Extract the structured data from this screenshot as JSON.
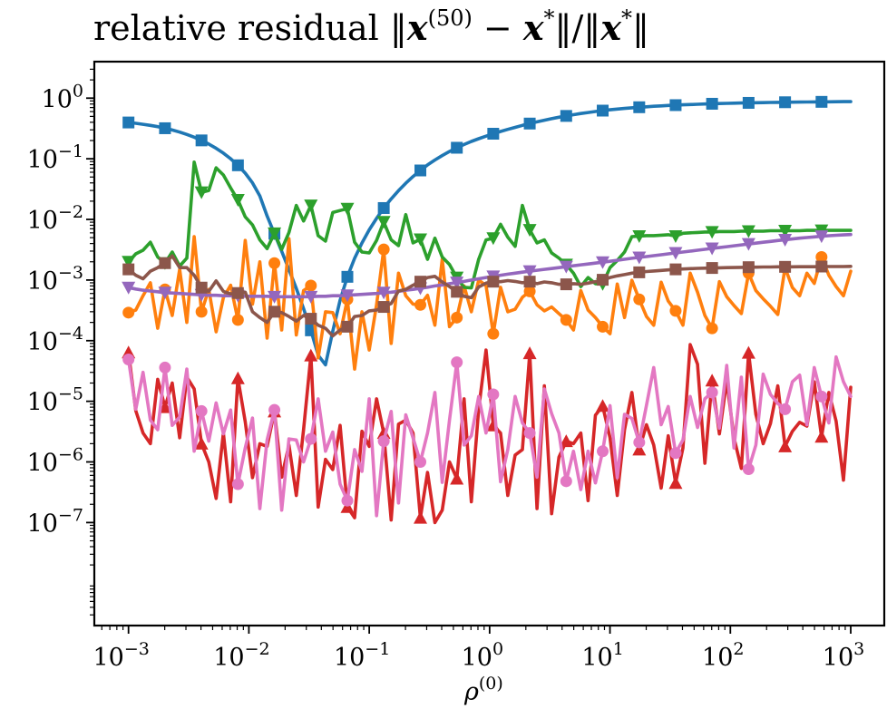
{
  "chart_data": {
    "type": "line",
    "title": "relative residual ‖x(50) − x*‖/‖x*‖",
    "title_parts": {
      "prefix": "relative residual ‖",
      "x1": "x",
      "sup": "(50)",
      "minus": " − ",
      "x2": "x",
      "star": "*",
      "mid": "‖/‖",
      "x3": "x",
      "star2": "*",
      "end": "‖"
    },
    "xlabel": "ρ",
    "xlabel_sup": "(0)",
    "ylabel": "",
    "xscale": "log",
    "yscale": "log",
    "xlim": [
      0.00052,
      1900
    ],
    "ylim": [
      2e-09,
      4.0
    ],
    "x_ticks": [
      {
        "value": 0.001,
        "base": "10",
        "exp": "−3"
      },
      {
        "value": 0.01,
        "base": "10",
        "exp": "−2"
      },
      {
        "value": 0.1,
        "base": "10",
        "exp": "−1"
      },
      {
        "value": 1,
        "base": "10",
        "exp": "0"
      },
      {
        "value": 10,
        "base": "10",
        "exp": "1"
      },
      {
        "value": 100,
        "base": "10",
        "exp": "2"
      },
      {
        "value": 1000,
        "base": "10",
        "exp": "3"
      }
    ],
    "y_ticks": [
      {
        "value": 1,
        "base": "10",
        "exp": "0"
      },
      {
        "value": 0.1,
        "base": "10",
        "exp": "−1"
      },
      {
        "value": 0.01,
        "base": "10",
        "exp": "−2"
      },
      {
        "value": 0.001,
        "base": "10",
        "exp": "−3"
      },
      {
        "value": 0.0001,
        "base": "10",
        "exp": "−4"
      },
      {
        "value": 1e-05,
        "base": "10",
        "exp": "−5"
      },
      {
        "value": 1e-06,
        "base": "10",
        "exp": "−6"
      },
      {
        "value": 1e-07,
        "base": "10",
        "exp": "−7"
      }
    ],
    "x": [
      0.001,
      0.00115,
      0.00132,
      0.00152,
      0.00175,
      0.00201,
      0.00231,
      0.00266,
      0.00305,
      0.00351,
      0.00404,
      0.00464,
      0.00534,
      0.00614,
      0.00705,
      0.00811,
      0.00933,
      0.01072,
      0.01233,
      0.01417,
      0.0163,
      0.01874,
      0.02154,
      0.02477,
      0.02848,
      0.03275,
      0.03765,
      0.04329,
      0.04977,
      0.05722,
      0.06579,
      0.07565,
      0.08697,
      0.1,
      0.115,
      0.132,
      0.152,
      0.175,
      0.201,
      0.231,
      0.266,
      0.305,
      0.351,
      0.404,
      0.464,
      0.534,
      0.614,
      0.705,
      0.811,
      0.933,
      1.072,
      1.233,
      1.417,
      1.63,
      1.874,
      2.154,
      2.477,
      2.848,
      3.275,
      3.765,
      4.329,
      4.977,
      5.722,
      6.579,
      7.565,
      8.697,
      10.0,
      11.5,
      13.2,
      15.2,
      17.5,
      20.1,
      23.1,
      26.6,
      30.5,
      35.1,
      40.4,
      46.4,
      53.4,
      61.4,
      70.5,
      81.1,
      93.3,
      107.2,
      123.3,
      141.7,
      163.0,
      187.4,
      215.4,
      247.7,
      284.8,
      327.5,
      376.5,
      432.9,
      497.7,
      572.2,
      657.9,
      756.5,
      869.7,
      1000.0
    ],
    "series": [
      {
        "name": "blue-squares",
        "color": "#1f77b4",
        "marker": "square",
        "values": [
          0.397,
          0.385,
          0.371,
          0.356,
          0.339,
          0.319,
          0.298,
          0.276,
          0.252,
          0.227,
          0.201,
          0.175,
          0.149,
          0.124,
          0.1,
          0.0781,
          0.058,
          0.0401,
          0.0244,
          0.0114,
          0.0058,
          0.00298,
          0.00149,
          0.000725,
          0.000338,
          0.000148,
          5.75e-05,
          3.99e-05,
          0.000143,
          0.000466,
          0.00113,
          0.00228,
          0.00408,
          0.00673,
          0.0104,
          0.0154,
          0.0218,
          0.0298,
          0.0395,
          0.051,
          0.0642,
          0.0791,
          0.0955,
          0.113,
          0.132,
          0.152,
          0.172,
          0.193,
          0.214,
          0.236,
          0.259,
          0.282,
          0.306,
          0.33,
          0.355,
          0.381,
          0.406,
          0.433,
          0.458,
          0.484,
          0.509,
          0.534,
          0.558,
          0.58,
          0.602,
          0.623,
          0.642,
          0.66,
          0.677,
          0.693,
          0.708,
          0.721,
          0.734,
          0.746,
          0.757,
          0.767,
          0.777,
          0.785,
          0.794,
          0.801,
          0.808,
          0.815,
          0.821,
          0.826,
          0.832,
          0.836,
          0.841,
          0.845,
          0.849,
          0.852,
          0.856,
          0.859,
          0.862,
          0.864,
          0.867,
          0.869,
          0.871,
          0.873,
          0.875,
          0.877
        ]
      },
      {
        "name": "orange-circles",
        "color": "#ff7f0e",
        "marker": "circle",
        "values": [
          0.00029,
          0.00032,
          0.00055,
          0.0009,
          0.00016,
          0.0007,
          0.00026,
          0.0015,
          0.0002,
          0.0052,
          0.0003,
          0.0007,
          0.00014,
          0.00051,
          0.00082,
          0.00022,
          0.0045,
          0.0004,
          0.002,
          0.00011,
          0.0019,
          0.00015,
          0.0048,
          0.000124,
          0.00067,
          0.00081,
          5.2e-05,
          0.0003,
          0.00029,
          0.00013,
          0.00048,
          3.4e-05,
          0.0003,
          7e-05,
          0.00039,
          0.0032,
          9e-05,
          0.0013,
          0.00055,
          0.0004,
          0.00039,
          0.00056,
          0.00018,
          0.0022,
          0.00017,
          0.00024,
          0.0008,
          0.0003,
          0.001,
          0.00081,
          0.00013,
          0.00076,
          0.0003,
          0.00033,
          0.00052,
          0.00065,
          0.00039,
          0.00031,
          0.00036,
          0.00028,
          0.00022,
          0.00015,
          0.00067,
          0.00032,
          0.00024,
          0.00017,
          0.00013,
          0.00086,
          0.00024,
          0.00099,
          0.00048,
          0.00025,
          0.00018,
          0.00092,
          0.00045,
          0.00031,
          0.00018,
          0.0013,
          0.00063,
          0.00026,
          0.00016,
          0.00094,
          0.00053,
          0.00038,
          0.00028,
          0.0013,
          0.00067,
          0.00049,
          0.00037,
          0.00027,
          0.0016,
          0.00075,
          0.00055,
          0.0013,
          0.00088,
          0.0024,
          0.0012,
          0.00078,
          0.00055,
          0.0014
        ]
      },
      {
        "name": "green-down-triangles",
        "color": "#2ca02c",
        "marker": "triangle-down",
        "values": [
          0.002,
          0.0027,
          0.0031,
          0.0042,
          0.0024,
          0.0019,
          0.0029,
          0.0017,
          0.0023,
          0.088,
          0.028,
          0.03,
          0.071,
          0.054,
          0.033,
          0.021,
          0.011,
          0.0081,
          0.0046,
          0.0033,
          0.0059,
          0.0032,
          0.0061,
          0.017,
          0.0094,
          0.017,
          0.0054,
          0.0044,
          0.013,
          0.014,
          0.015,
          0.0042,
          0.0029,
          0.0028,
          0.0045,
          0.0091,
          0.0046,
          0.0037,
          0.012,
          0.0041,
          0.0047,
          0.0022,
          0.0049,
          0.0024,
          0.0018,
          0.0011,
          0.00076,
          0.00074,
          0.0022,
          0.0046,
          0.0049,
          0.0083,
          0.0051,
          0.0036,
          0.017,
          0.0067,
          0.0041,
          0.0046,
          0.0028,
          0.0023,
          0.0018,
          0.0013,
          0.00078,
          0.0011,
          0.00087,
          0.00086,
          0.0016,
          0.0021,
          0.0029,
          0.0052,
          0.0053,
          0.0054,
          0.0054,
          0.0055,
          0.0056,
          0.0053,
          0.0059,
          0.006,
          0.0061,
          0.0062,
          0.0062,
          0.0063,
          0.0063,
          0.0063,
          0.0064,
          0.0064,
          0.0064,
          0.0064,
          0.0065,
          0.0065,
          0.0065,
          0.0065,
          0.0065,
          0.0066,
          0.0066,
          0.0066,
          0.0066,
          0.0066,
          0.0066,
          0.0066
        ]
      },
      {
        "name": "red-up-triangles",
        "color": "#d62728",
        "marker": "triangle-up",
        "values": [
          6.4e-05,
          7e-06,
          3e-06,
          2e-06,
          2.3e-05,
          8e-06,
          2e-05,
          2.5e-06,
          2.5e-05,
          1.6e-05,
          2e-06,
          1e-06,
          2.5e-07,
          3e-06,
          2.2e-07,
          2.4e-05,
          4.6e-06,
          5.5e-07,
          2e-06,
          1.8e-06,
          6.8e-06,
          5.6e-07,
          1.9e-06,
          2.8e-07,
          3.4e-06,
          5.7e-05,
          1.8e-07,
          1.1e-06,
          7.5e-07,
          4e-06,
          1.8e-07,
          1.2e-07,
          3.2e-06,
          1.8e-06,
          1.1e-05,
          3e-06,
          1.1e-07,
          4.2e-06,
          4.9e-06,
          3e-06,
          1.2e-07,
          6.7e-07,
          1e-07,
          1.6e-07,
          1e-06,
          5.3e-07,
          1.1e-05,
          2.2e-07,
          7.5e-06,
          7e-05,
          4e-06,
          3e-06,
          2.8e-07,
          1.3e-06,
          1.6e-06,
          6.2e-05,
          1.7e-07,
          1.8e-05,
          1.4e-07,
          1.2e-06,
          2.2e-06,
          2e-06,
          3e-06,
          2.3e-07,
          5.9e-06,
          8.4e-06,
          2.5e-06,
          2.8e-07,
          3.4e-06,
          1.4e-05,
          1.6e-06,
          4.1e-06,
          1.9e-06,
          3.7e-07,
          2.7e-06,
          4.5e-07,
          1.7e-06,
          8.6e-05,
          4.1e-05,
          9.5e-07,
          2.2e-05,
          2.9e-06,
          2.2e-05,
          2.5e-06,
          7.8e-07,
          6.3e-05,
          6.1e-06,
          2e-06,
          4.3e-06,
          1.8e-05,
          1.8e-06,
          3.2e-06,
          4.5e-06,
          3.9e-06,
          2.1e-05,
          2.6e-06,
          1.4e-05,
          4.7e-06,
          5e-07,
          1.7e-05
        ]
      },
      {
        "name": "purple-down-triangles",
        "color": "#9467bd",
        "marker": "triangle-down",
        "values": [
          0.00075,
          0.00071,
          0.00068,
          0.00066,
          0.00064,
          0.00062,
          0.00061,
          0.0006,
          0.00059,
          0.00058,
          0.00057,
          0.00056,
          0.00056,
          0.00055,
          0.00055,
          0.00055,
          0.00054,
          0.00054,
          0.00054,
          0.00054,
          0.00053,
          0.00053,
          0.00053,
          0.00053,
          0.00053,
          0.00053,
          0.00054,
          0.00054,
          0.00055,
          0.00055,
          0.00056,
          0.00057,
          0.00058,
          0.00059,
          0.0006,
          0.00062,
          0.00063,
          0.00065,
          0.00068,
          0.0007,
          0.00073,
          0.00076,
          0.0008,
          0.00083,
          0.00087,
          0.00091,
          0.00095,
          0.001,
          0.00105,
          0.0011,
          0.00115,
          0.0012,
          0.00125,
          0.0013,
          0.00135,
          0.0014,
          0.00145,
          0.0015,
          0.00155,
          0.0016,
          0.00166,
          0.00172,
          0.00178,
          0.00184,
          0.0019,
          0.00197,
          0.00204,
          0.00212,
          0.0022,
          0.00228,
          0.00236,
          0.00244,
          0.00252,
          0.00261,
          0.0027,
          0.0028,
          0.0029,
          0.003,
          0.0031,
          0.00321,
          0.00332,
          0.00343,
          0.00355,
          0.00367,
          0.0038,
          0.00393,
          0.00406,
          0.0042,
          0.00434,
          0.00448,
          0.00462,
          0.00476,
          0.0049,
          0.00503,
          0.00515,
          0.00527,
          0.00538,
          0.00548,
          0.00556,
          0.00563
        ]
      },
      {
        "name": "brown-squares",
        "color": "#8c564b",
        "marker": "square",
        "values": [
          0.0015,
          0.0012,
          0.00105,
          0.0014,
          0.0016,
          0.0019,
          0.0025,
          0.0016,
          0.0016,
          0.0012,
          0.00075,
          0.00065,
          0.00097,
          0.00065,
          0.00059,
          0.00061,
          0.00063,
          0.0003,
          0.00024,
          0.0002,
          0.0003,
          0.00029,
          0.00025,
          0.00021,
          0.00026,
          0.00023,
          0.00018,
          0.00016,
          0.00012,
          0.00015,
          0.00017,
          0.00025,
          0.00026,
          0.00031,
          0.00032,
          0.00036,
          0.00041,
          0.00066,
          0.0007,
          0.00082,
          0.00094,
          0.0011,
          0.00115,
          0.00093,
          0.00078,
          0.00064,
          0.00054,
          0.00051,
          0.00077,
          0.00089,
          0.00094,
          0.00094,
          0.00098,
          0.00095,
          0.0009,
          0.00094,
          0.00087,
          0.00093,
          0.0009,
          0.00085,
          0.00085,
          0.00087,
          0.00085,
          0.00089,
          0.00094,
          0.00101,
          0.0011,
          0.00117,
          0.00123,
          0.0013,
          0.00134,
          0.00138,
          0.00141,
          0.00144,
          0.00147,
          0.0015,
          0.00152,
          0.00154,
          0.00156,
          0.00157,
          0.00158,
          0.00159,
          0.0016,
          0.00161,
          0.00162,
          0.00163,
          0.00163,
          0.00164,
          0.00164,
          0.00165,
          0.00165,
          0.00165,
          0.00166,
          0.00166,
          0.00166,
          0.00167,
          0.00167,
          0.00167,
          0.00167,
          0.00168
        ]
      },
      {
        "name": "pink-circles",
        "color": "#e377c2",
        "marker": "circle",
        "values": [
          4.9e-05,
          7.4e-06,
          3e-05,
          4.9e-06,
          3.4e-06,
          3.6e-05,
          4e-06,
          5.5e-06,
          3.4e-05,
          1.5e-06,
          6.9e-06,
          2.2e-06,
          9.4e-06,
          2.9e-06,
          7.2e-06,
          4.3e-07,
          1.7e-06,
          5.3e-06,
          1.7e-07,
          2.3e-06,
          7.2e-06,
          1.6e-07,
          2.4e-06,
          2.3e-06,
          1e-06,
          2.4e-06,
          1.1e-05,
          1.5e-06,
          3.1e-06,
          4.3e-07,
          2.3e-07,
          1.6e-06,
          7e-07,
          1.1e-05,
          1.3e-07,
          2.2e-06,
          6.8e-06,
          2.1e-07,
          6e-06,
          2.5e-06,
          1e-06,
          3e-06,
          1.4e-05,
          4.6e-07,
          4.9e-06,
          4.4e-05,
          1.9e-06,
          2.7e-06,
          1.2e-05,
          3e-06,
          1.3e-05,
          4.7e-07,
          1.6e-06,
          1.2e-05,
          4.4e-06,
          3e-06,
          5.6e-07,
          1.6e-05,
          6.3e-06,
          3e-06,
          4.8e-07,
          1.5e-06,
          3.5e-07,
          1.5e-06,
          4.5e-07,
          1.5e-06,
          8.5e-06,
          5.5e-07,
          6.1e-06,
          5.2e-06,
          2.1e-06,
          8.6e-06,
          3.6e-05,
          4.1e-06,
          8.2e-06,
          1.4e-06,
          2.3e-06,
          1.2e-05,
          3.7e-06,
          1.1e-05,
          1.4e-05,
          3.6e-06,
          3.9e-05,
          1.7e-06,
          2.5e-05,
          7.6e-07,
          1.9e-06,
          2.8e-05,
          1.3e-05,
          9.2e-06,
          7.4e-06,
          2.1e-05,
          2.7e-05,
          4.1e-06,
          3.6e-05,
          1.2e-05,
          4.4e-06,
          5.4e-05,
          2.1e-05,
          1.2e-05
        ]
      }
    ]
  }
}
